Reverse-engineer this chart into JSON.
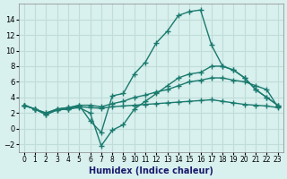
{
  "xlabel": "Humidex (Indice chaleur)",
  "x": [
    0,
    1,
    2,
    3,
    4,
    5,
    6,
    7,
    8,
    9,
    10,
    11,
    12,
    13,
    14,
    15,
    16,
    17,
    18,
    19,
    20,
    21,
    22,
    23
  ],
  "line1": [
    3.0,
    2.5,
    1.8,
    2.4,
    2.5,
    3.0,
    1.0,
    -0.5,
    4.2,
    4.5,
    7.0,
    8.5,
    11.0,
    12.5,
    14.5,
    15.0,
    15.2,
    10.7,
    8.0,
    7.5,
    6.5,
    5.0,
    4.0,
    3.0
  ],
  "line2": [
    3.0,
    2.5,
    1.8,
    2.4,
    2.5,
    2.7,
    2.0,
    -2.2,
    -0.2,
    0.5,
    2.5,
    3.5,
    4.5,
    5.5,
    6.5,
    7.0,
    7.2,
    8.0,
    8.0,
    7.5,
    6.5,
    5.0,
    4.0,
    3.0
  ],
  "line3": [
    3.0,
    2.5,
    2.0,
    2.5,
    2.7,
    3.0,
    3.0,
    2.8,
    3.2,
    3.5,
    4.0,
    4.3,
    4.7,
    5.0,
    5.5,
    6.0,
    6.2,
    6.5,
    6.5,
    6.2,
    6.0,
    5.5,
    5.0,
    2.8
  ],
  "line4": [
    3.0,
    2.5,
    2.0,
    2.5,
    2.7,
    2.8,
    2.7,
    2.6,
    2.8,
    2.9,
    3.0,
    3.1,
    3.2,
    3.3,
    3.4,
    3.5,
    3.6,
    3.7,
    3.5,
    3.3,
    3.1,
    3.0,
    2.9,
    2.7
  ],
  "line_color": "#1a7a6e",
  "bg_color": "#d8f0ee",
  "grid_color": "#c0ddd8",
  "ylim": [
    -3,
    16
  ],
  "yticks": [
    -2,
    0,
    2,
    4,
    6,
    8,
    10,
    12,
    14
  ],
  "marker": "+"
}
